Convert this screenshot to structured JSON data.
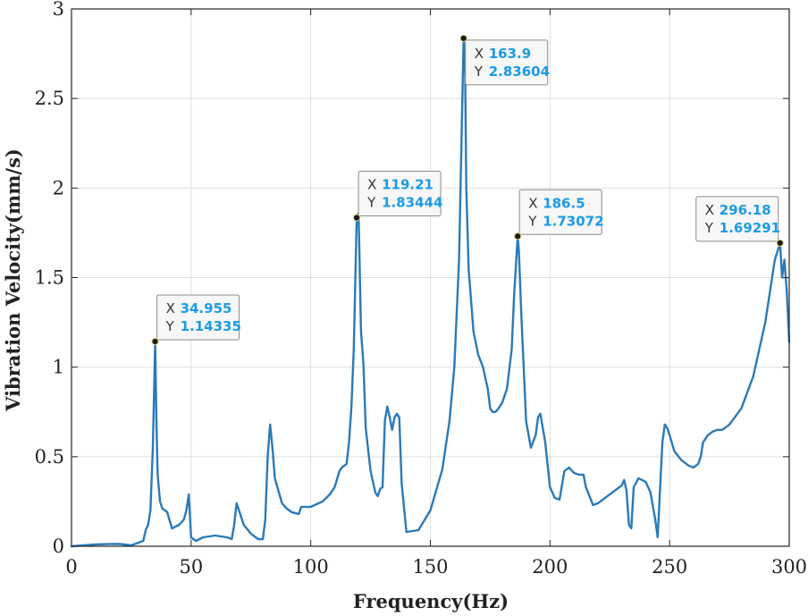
{
  "chart_data": {
    "type": "line",
    "title": "",
    "xlabel": "Frequency(Hz)",
    "ylabel": "Vibration Velocity(mm/s)",
    "xlim": [
      0,
      300
    ],
    "ylim": [
      0,
      3
    ],
    "xticks": [
      0,
      50,
      100,
      150,
      200,
      250,
      300
    ],
    "yticks": [
      0,
      0.5,
      1,
      1.5,
      2,
      2.5,
      3
    ],
    "xtick_labels": [
      "0",
      "50",
      "100",
      "150",
      "200",
      "250",
      "300"
    ],
    "ytick_labels": [
      "0",
      "0.5",
      "1",
      "1.5",
      "2",
      "2.5",
      "3"
    ],
    "grid": true,
    "line_color": "#2a7ab8",
    "series": [
      {
        "x": [
          0,
          5,
          10,
          15,
          20,
          22,
          25,
          28,
          30,
          31,
          32,
          33,
          34,
          34.955,
          35.5,
          36,
          37,
          38,
          39,
          40,
          42,
          45,
          47,
          48,
          49,
          50,
          52,
          55,
          60,
          65,
          67,
          68,
          69,
          70,
          72,
          75,
          78,
          80,
          81,
          82,
          83,
          84,
          85,
          88,
          90,
          92,
          95,
          96,
          100,
          105,
          108,
          110,
          112,
          113,
          115,
          116,
          117,
          118,
          119.21,
          120,
          121,
          122,
          123,
          125,
          127,
          128,
          129,
          130,
          131,
          132,
          133,
          134,
          135,
          136,
          137,
          138,
          140,
          145,
          150,
          155,
          158,
          160,
          162,
          163.9,
          164.5,
          165,
          166,
          168,
          170,
          172,
          174,
          175,
          176,
          177,
          178,
          180,
          182,
          184,
          185,
          186.5,
          187,
          188,
          190,
          192,
          194,
          195,
          196,
          198,
          200,
          202,
          204,
          206,
          208,
          210,
          212,
          214,
          215,
          218,
          220,
          225,
          230,
          231,
          232,
          233,
          234,
          235,
          237,
          240,
          242,
          244,
          245,
          247,
          248,
          249,
          250,
          252,
          255,
          258,
          260,
          262,
          263,
          264,
          266,
          268,
          270,
          272,
          275,
          280,
          285,
          290,
          294,
          296.18,
          297,
          298,
          299,
          300
        ],
        "y": [
          0,
          0.005,
          0.01,
          0.012,
          0.013,
          0.01,
          0.005,
          0.02,
          0.03,
          0.09,
          0.12,
          0.2,
          0.55,
          1.14335,
          0.7,
          0.4,
          0.25,
          0.21,
          0.2,
          0.19,
          0.1,
          0.12,
          0.15,
          0.2,
          0.29,
          0.05,
          0.03,
          0.05,
          0.06,
          0.05,
          0.04,
          0.12,
          0.24,
          0.2,
          0.12,
          0.07,
          0.04,
          0.04,
          0.15,
          0.5,
          0.68,
          0.55,
          0.38,
          0.24,
          0.21,
          0.19,
          0.18,
          0.22,
          0.22,
          0.25,
          0.29,
          0.33,
          0.42,
          0.44,
          0.46,
          0.58,
          0.78,
          1.1,
          1.83444,
          1.86,
          1.2,
          1.02,
          0.66,
          0.42,
          0.3,
          0.28,
          0.32,
          0.33,
          0.7,
          0.78,
          0.72,
          0.65,
          0.72,
          0.74,
          0.72,
          0.35,
          0.08,
          0.09,
          0.2,
          0.43,
          0.7,
          1.0,
          1.6,
          2.83604,
          2.7,
          2.0,
          1.55,
          1.2,
          1.07,
          1.0,
          0.88,
          0.77,
          0.75,
          0.75,
          0.76,
          0.8,
          0.88,
          1.1,
          1.4,
          1.73072,
          1.65,
          1.3,
          0.7,
          0.55,
          0.62,
          0.72,
          0.74,
          0.58,
          0.33,
          0.27,
          0.26,
          0.42,
          0.44,
          0.41,
          0.4,
          0.4,
          0.33,
          0.23,
          0.24,
          0.29,
          0.34,
          0.37,
          0.31,
          0.12,
          0.1,
          0.33,
          0.38,
          0.36,
          0.3,
          0.15,
          0.05,
          0.58,
          0.68,
          0.66,
          0.62,
          0.53,
          0.48,
          0.45,
          0.44,
          0.46,
          0.5,
          0.58,
          0.62,
          0.64,
          0.65,
          0.65,
          0.68,
          0.77,
          0.95,
          1.25,
          1.6,
          1.69291,
          1.5,
          1.6,
          1.42,
          1.14
        ]
      }
    ],
    "annotations": [
      {
        "x": 34.955,
        "y": 1.14335,
        "x_key": "X",
        "y_key": "Y",
        "x_text": "34.955",
        "y_text": "1.14335"
      },
      {
        "x": 119.21,
        "y": 1.83444,
        "x_key": "X",
        "y_key": "Y",
        "x_text": "119.21",
        "y_text": "1.83444"
      },
      {
        "x": 163.9,
        "y": 2.83604,
        "x_key": "X",
        "y_key": "Y",
        "x_text": "163.9",
        "y_text": "2.83604"
      },
      {
        "x": 186.5,
        "y": 1.73072,
        "x_key": "X",
        "y_key": "Y",
        "x_text": "186.5",
        "y_text": "1.73072"
      },
      {
        "x": 296.18,
        "y": 1.69291,
        "x_key": "X",
        "y_key": "Y",
        "x_text": "296.18",
        "y_text": "1.69291"
      }
    ]
  }
}
